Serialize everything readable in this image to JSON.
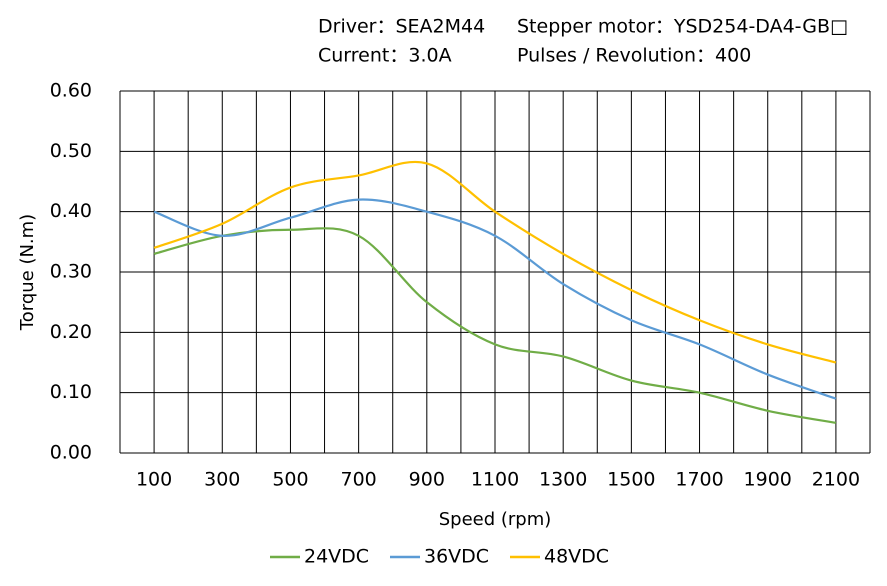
{
  "chart_data": {
    "type": "line",
    "annotations": [
      "Driver：SEA2M44",
      "Stepper motor：YSD254-DA4-GB□",
      "Current：3.0A",
      "Pulses / Revolution：400"
    ],
    "xlabel": "Speed (rpm)",
    "ylabel": "Torque (N.m)",
    "x": [
      100,
      300,
      500,
      700,
      900,
      1100,
      1300,
      1500,
      1700,
      1900,
      2100
    ],
    "series": [
      {
        "name": "24VDC",
        "color": "#70ad47",
        "values": [
          0.33,
          0.36,
          0.37,
          0.36,
          0.25,
          0.18,
          0.16,
          0.12,
          0.1,
          0.07,
          0.05
        ]
      },
      {
        "name": "36VDC",
        "color": "#5b9bd5",
        "values": [
          0.4,
          0.36,
          0.39,
          0.42,
          0.4,
          0.36,
          0.28,
          0.22,
          0.18,
          0.13,
          0.09
        ]
      },
      {
        "name": "48VDC",
        "color": "#ffc000",
        "values": [
          0.34,
          0.38,
          0.44,
          0.46,
          0.48,
          0.4,
          0.33,
          0.27,
          0.22,
          0.18,
          0.15
        ]
      }
    ],
    "xlim": [
      0,
      2200
    ],
    "xticks": [
      100,
      300,
      500,
      700,
      900,
      1100,
      1300,
      1500,
      1700,
      1900,
      2100
    ],
    "xminor": [
      0,
      100,
      200,
      300,
      400,
      500,
      600,
      700,
      800,
      900,
      1000,
      1100,
      1200,
      1300,
      1400,
      1500,
      1600,
      1700,
      1800,
      1900,
      2000,
      2100,
      2200
    ],
    "ylim": [
      0,
      0.6
    ],
    "yticks": [
      {
        "value": 0,
        "label": "0.00"
      },
      {
        "value": 0.1,
        "label": "0.10"
      },
      {
        "value": 0.2,
        "label": "0.20"
      },
      {
        "value": 0.3,
        "label": "0.30"
      },
      {
        "value": 0.4,
        "label": "0.40"
      },
      {
        "value": 0.5,
        "label": "0.50"
      },
      {
        "value": 0.6,
        "label": "0.60"
      }
    ],
    "grid": true,
    "legend": "bottom"
  }
}
